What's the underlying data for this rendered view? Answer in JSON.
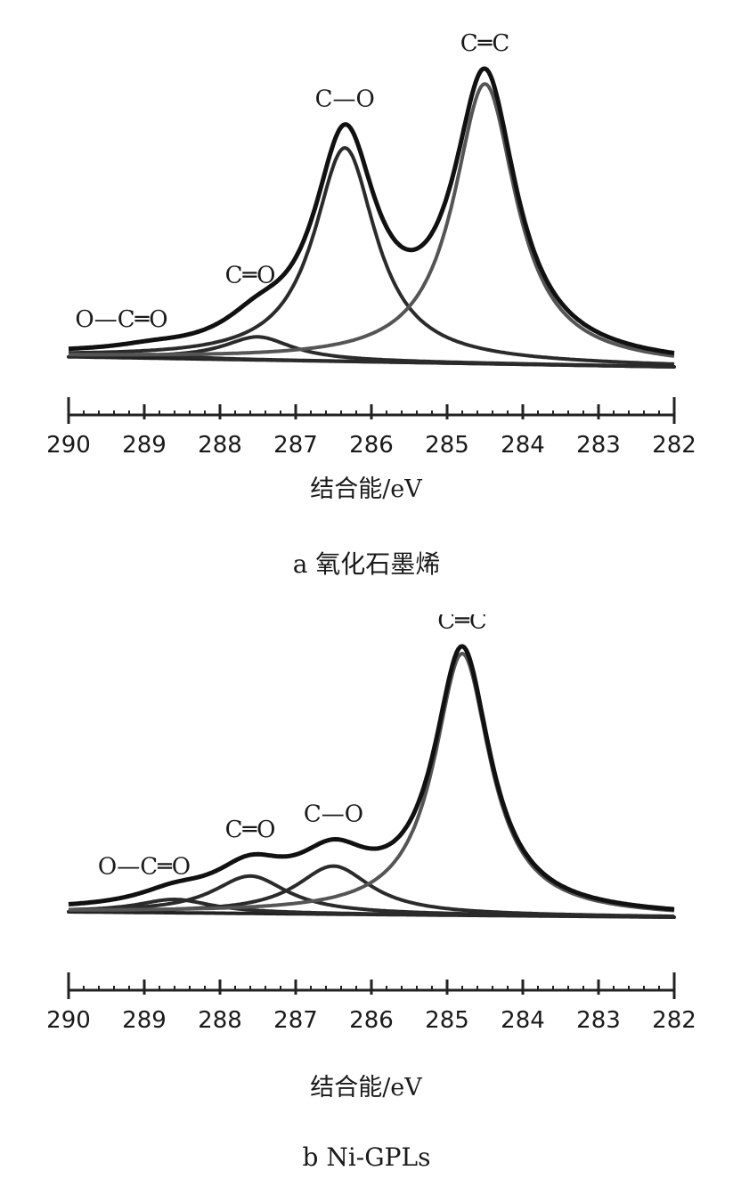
{
  "chart_data": [
    {
      "type": "line",
      "caption": "a 氧化石墨烯",
      "xlabel": "结合能/eV",
      "ylabel": "",
      "xlim": [
        290,
        282
      ],
      "x_reversed": true,
      "xticks": [
        290,
        289,
        288,
        287,
        286,
        285,
        284,
        283,
        282
      ],
      "grid": false,
      "baseline": [
        [
          290,
          0.035
        ],
        [
          282,
          0.0
        ]
      ],
      "series": [
        {
          "name": "O—C═O",
          "center": 288.9,
          "height": 0.012,
          "width": 0.55,
          "label_at": [
            289.3
          ]
        },
        {
          "name": "C═O",
          "center": 287.5,
          "height": 0.08,
          "width": 0.55,
          "label_at": [
            287.6
          ]
        },
        {
          "name": "C—O",
          "center": 286.35,
          "height": 0.74,
          "width": 0.5,
          "label_at": [
            286.35
          ]
        },
        {
          "name": "C═C",
          "center": 284.5,
          "height": 0.97,
          "width": 0.5,
          "label_at": [
            284.5
          ]
        }
      ]
    },
    {
      "type": "line",
      "caption": "b Ni-GPLs",
      "xlabel": "结合能/eV",
      "ylabel": "",
      "xlim": [
        290,
        282
      ],
      "x_reversed": true,
      "xticks": [
        290,
        289,
        288,
        287,
        286,
        285,
        284,
        283,
        282
      ],
      "grid": false,
      "baseline": [
        [
          290,
          0.02
        ],
        [
          282,
          0.0
        ]
      ],
      "series": [
        {
          "name": "O—C═O",
          "center": 288.6,
          "height": 0.05,
          "width": 0.6,
          "label_at": [
            289.0
          ]
        },
        {
          "name": "C═O",
          "center": 287.6,
          "height": 0.14,
          "width": 0.6,
          "label_at": [
            287.6
          ]
        },
        {
          "name": "C—O",
          "center": 286.5,
          "height": 0.18,
          "width": 0.6,
          "label_at": [
            286.5
          ]
        },
        {
          "name": "C═C",
          "center": 284.8,
          "height": 0.98,
          "width": 0.45,
          "label_at": [
            284.8
          ]
        }
      ]
    }
  ]
}
